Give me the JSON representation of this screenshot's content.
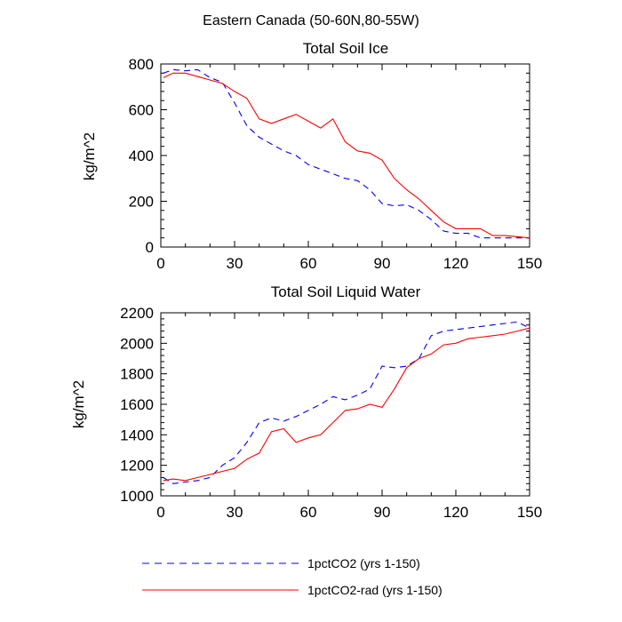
{
  "figure": {
    "suptitle": "Eastern Canada (50-60N,80-55W)"
  },
  "colors": {
    "series1": "#0000ff",
    "series2": "#ff0000"
  },
  "legend": {
    "entries": [
      {
        "label": "1pctCO2 (yrs 1-150)",
        "style": "dashed",
        "color": "#0000ff"
      },
      {
        "label": "1pctCO2-rad (yrs 1-150)",
        "style": "solid",
        "color": "#ff0000"
      }
    ]
  },
  "chart_data": [
    {
      "type": "line",
      "title": "Total Soil Ice",
      "xlabel": "",
      "ylabel": "kg/m^2",
      "xlim": [
        0,
        150
      ],
      "ylim": [
        0,
        800
      ],
      "xticks": [
        0,
        30,
        60,
        90,
        120,
        150
      ],
      "yticks": [
        0,
        200,
        400,
        600,
        800
      ],
      "x": [
        1,
        5,
        10,
        15,
        20,
        25,
        30,
        35,
        40,
        45,
        50,
        55,
        60,
        65,
        70,
        75,
        80,
        85,
        90,
        95,
        100,
        105,
        110,
        115,
        120,
        125,
        130,
        135,
        140,
        145,
        150
      ],
      "series": [
        {
          "name": "1pctCO2 (yrs 1-150)",
          "style": "dashed",
          "values": [
            760,
            775,
            770,
            775,
            740,
            720,
            630,
            530,
            480,
            450,
            420,
            400,
            360,
            340,
            320,
            300,
            290,
            250,
            190,
            180,
            185,
            160,
            120,
            70,
            60,
            60,
            40,
            40,
            40,
            40,
            40
          ]
        },
        {
          "name": "1pctCO2-rad (yrs 1-150)",
          "style": "solid",
          "values": [
            740,
            760,
            760,
            745,
            730,
            715,
            680,
            650,
            560,
            540,
            560,
            580,
            550,
            520,
            560,
            460,
            420,
            410,
            380,
            300,
            250,
            210,
            160,
            110,
            80,
            80,
            80,
            50,
            50,
            45,
            40
          ]
        }
      ]
    },
    {
      "type": "line",
      "title": "Total Soil Liquid Water",
      "xlabel": "",
      "ylabel": "kg/m^2",
      "xlim": [
        0,
        150
      ],
      "ylim": [
        1000,
        2200
      ],
      "xticks": [
        0,
        30,
        60,
        90,
        120,
        150
      ],
      "yticks": [
        1000,
        1200,
        1400,
        1600,
        1800,
        2000,
        2200
      ],
      "x": [
        1,
        5,
        10,
        15,
        20,
        25,
        30,
        35,
        40,
        45,
        50,
        55,
        60,
        65,
        70,
        75,
        80,
        85,
        90,
        95,
        100,
        105,
        110,
        115,
        120,
        125,
        130,
        135,
        140,
        145,
        150
      ],
      "series": [
        {
          "name": "1pctCO2 (yrs 1-150)",
          "style": "dashed",
          "values": [
            1120,
            1080,
            1090,
            1100,
            1120,
            1200,
            1250,
            1350,
            1480,
            1510,
            1490,
            1520,
            1560,
            1600,
            1650,
            1630,
            1660,
            1700,
            1850,
            1840,
            1850,
            1900,
            2050,
            2080,
            2090,
            2100,
            2110,
            2120,
            2130,
            2140,
            2100
          ]
        },
        {
          "name": "1pctCO2-rad (yrs 1-150)",
          "style": "solid",
          "values": [
            1100,
            1110,
            1100,
            1120,
            1140,
            1160,
            1180,
            1240,
            1280,
            1420,
            1440,
            1350,
            1380,
            1400,
            1480,
            1560,
            1570,
            1600,
            1580,
            1700,
            1840,
            1900,
            1930,
            1990,
            2000,
            2030,
            2040,
            2050,
            2060,
            2080,
            2100
          ]
        }
      ]
    }
  ]
}
